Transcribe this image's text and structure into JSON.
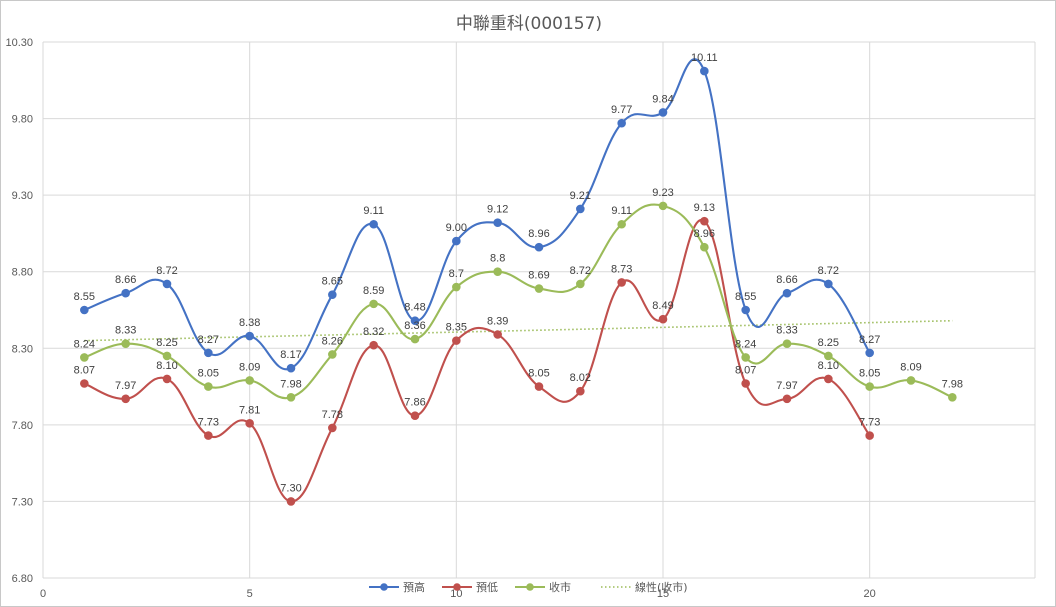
{
  "chart_data": {
    "type": "line",
    "title": "中聯重科(000157)",
    "xlim": [
      0,
      24
    ],
    "ylim": [
      6.8,
      10.3
    ],
    "x_ticks": [
      0,
      5,
      10,
      15,
      20
    ],
    "y_ticks": [
      "6.80",
      "7.30",
      "7.80",
      "8.30",
      "8.80",
      "9.30",
      "9.80",
      "10.30"
    ],
    "grid": true,
    "legend_position": "bottom",
    "series": [
      {
        "name": "預高",
        "color": "#4472c4",
        "x": [
          1,
          2,
          3,
          4,
          5,
          6,
          7,
          8,
          9,
          10,
          11,
          12,
          13,
          14,
          15,
          16,
          17,
          18,
          19,
          20
        ],
        "values": [
          8.55,
          8.66,
          8.72,
          8.27,
          8.38,
          8.17,
          8.65,
          9.11,
          8.48,
          9.0,
          9.12,
          8.96,
          9.21,
          9.77,
          9.84,
          10.11,
          8.55,
          8.66,
          8.72,
          8.27
        ],
        "labels": [
          "8.55",
          "8.66",
          "8.72",
          "8.27",
          "8.38",
          "8.17",
          "8.65",
          "9.11",
          "8.48",
          "9.00",
          "9.12",
          "8.96",
          "9.21",
          "9.77",
          "9.84",
          "10.11",
          "8.55",
          "8.66",
          "8.72",
          "8.27"
        ]
      },
      {
        "name": "預低",
        "color": "#c0504d",
        "x": [
          1,
          2,
          3,
          4,
          5,
          6,
          7,
          8,
          9,
          10,
          11,
          12,
          13,
          14,
          15,
          16,
          17,
          18,
          19,
          20
        ],
        "values": [
          8.07,
          7.97,
          8.1,
          7.73,
          7.81,
          7.3,
          7.78,
          8.32,
          7.86,
          8.35,
          8.39,
          8.05,
          8.02,
          8.73,
          8.49,
          9.13,
          8.07,
          7.97,
          8.1,
          7.73
        ],
        "labels": [
          "8.07",
          "7.97",
          "8.10",
          "7.73",
          "7.81",
          "7.30",
          "7.78",
          "8.32",
          "7.86",
          "8.35",
          "8.39",
          "8.05",
          "8.02",
          "8.73",
          "8.49",
          "9.13",
          "8.07",
          "7.97",
          "8.10",
          "7.73"
        ]
      },
      {
        "name": "收市",
        "color": "#9bbb59",
        "x": [
          1,
          2,
          3,
          4,
          5,
          6,
          7,
          8,
          9,
          10,
          11,
          12,
          13,
          14,
          15,
          16,
          17,
          18,
          19,
          20,
          21,
          22
        ],
        "values": [
          8.24,
          8.33,
          8.25,
          8.05,
          8.09,
          7.98,
          8.26,
          8.59,
          8.36,
          8.7,
          8.8,
          8.69,
          8.72,
          9.11,
          9.23,
          8.96,
          8.24,
          8.33,
          8.25,
          8.05,
          8.09,
          7.98
        ],
        "labels": [
          "8.24",
          "8.33",
          "8.25",
          "8.05",
          "8.09",
          "7.98",
          "8.26",
          "8.59",
          "8.36",
          "8.7",
          "8.8",
          "8.69",
          "8.72",
          "9.11",
          "9.23",
          "8.96",
          "8.24",
          "8.33",
          "8.25",
          "8.05",
          "8.09",
          "7.98"
        ]
      }
    ],
    "trendline": {
      "name": "線性(收市)",
      "color": "#9bbb59",
      "x": [
        1,
        22
      ],
      "values": [
        8.35,
        8.48
      ]
    }
  }
}
